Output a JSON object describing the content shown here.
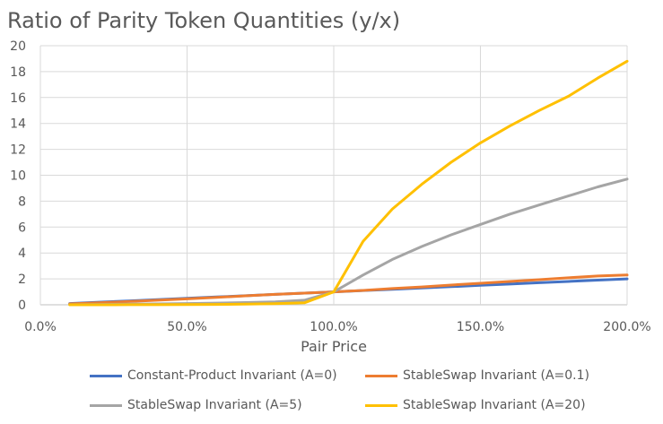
{
  "chart_data": {
    "type": "line",
    "title": "Ratio of Parity Token Quantities (y/x)",
    "xlabel": "Pair Price",
    "ylabel": "",
    "xlim": [
      0,
      2
    ],
    "ylim": [
      0,
      20
    ],
    "x_ticks": [
      0,
      0.5,
      1,
      1.5,
      2
    ],
    "x_tick_labels": [
      "0.0%",
      "50.0%",
      "100.0%",
      "150.0%",
      "200.0%"
    ],
    "y_ticks": [
      0,
      2,
      4,
      6,
      8,
      10,
      12,
      14,
      16,
      18,
      20
    ],
    "y_tick_labels": [
      "0",
      "2",
      "4",
      "6",
      "8",
      "10",
      "12",
      "14",
      "16",
      "18",
      "20"
    ],
    "grid": true,
    "legend_position": "bottom",
    "x": [
      0.1,
      0.2,
      0.3,
      0.4,
      0.5,
      0.6,
      0.7,
      0.8,
      0.9,
      1.0,
      1.1,
      1.2,
      1.3,
      1.4,
      1.5,
      1.6,
      1.7,
      1.8,
      1.9,
      2.0
    ],
    "series": [
      {
        "name": "Constant-Product Invariant (A=0)",
        "color": "#4472C4",
        "values": [
          0.1,
          0.2,
          0.3,
          0.4,
          0.5,
          0.6,
          0.7,
          0.8,
          0.9,
          1.0,
          1.1,
          1.2,
          1.3,
          1.4,
          1.5,
          1.6,
          1.7,
          1.8,
          1.9,
          2.0
        ]
      },
      {
        "name": "StableSwap Invariant (A=0.1)",
        "color": "#ED7D31",
        "values": [
          0.07,
          0.15,
          0.25,
          0.35,
          0.46,
          0.57,
          0.69,
          0.8,
          0.9,
          1.0,
          1.11,
          1.25,
          1.38,
          1.52,
          1.66,
          1.8,
          1.94,
          2.08,
          2.22,
          2.3
        ]
      },
      {
        "name": "StableSwap Invariant (A=5)",
        "color": "#A5A5A5",
        "values": [
          0.01,
          0.03,
          0.05,
          0.07,
          0.1,
          0.13,
          0.17,
          0.22,
          0.35,
          1.0,
          2.3,
          3.5,
          4.5,
          5.4,
          6.2,
          7.0,
          7.7,
          8.4,
          9.1,
          9.7
        ]
      },
      {
        "name": "StableSwap Invariant (A=20)",
        "color": "#FFC000",
        "values": [
          0.0,
          0.0,
          0.01,
          0.01,
          0.02,
          0.03,
          0.05,
          0.08,
          0.15,
          1.0,
          4.9,
          7.4,
          9.3,
          11.0,
          12.5,
          13.8,
          15.0,
          16.1,
          17.5,
          18.8
        ]
      }
    ]
  }
}
